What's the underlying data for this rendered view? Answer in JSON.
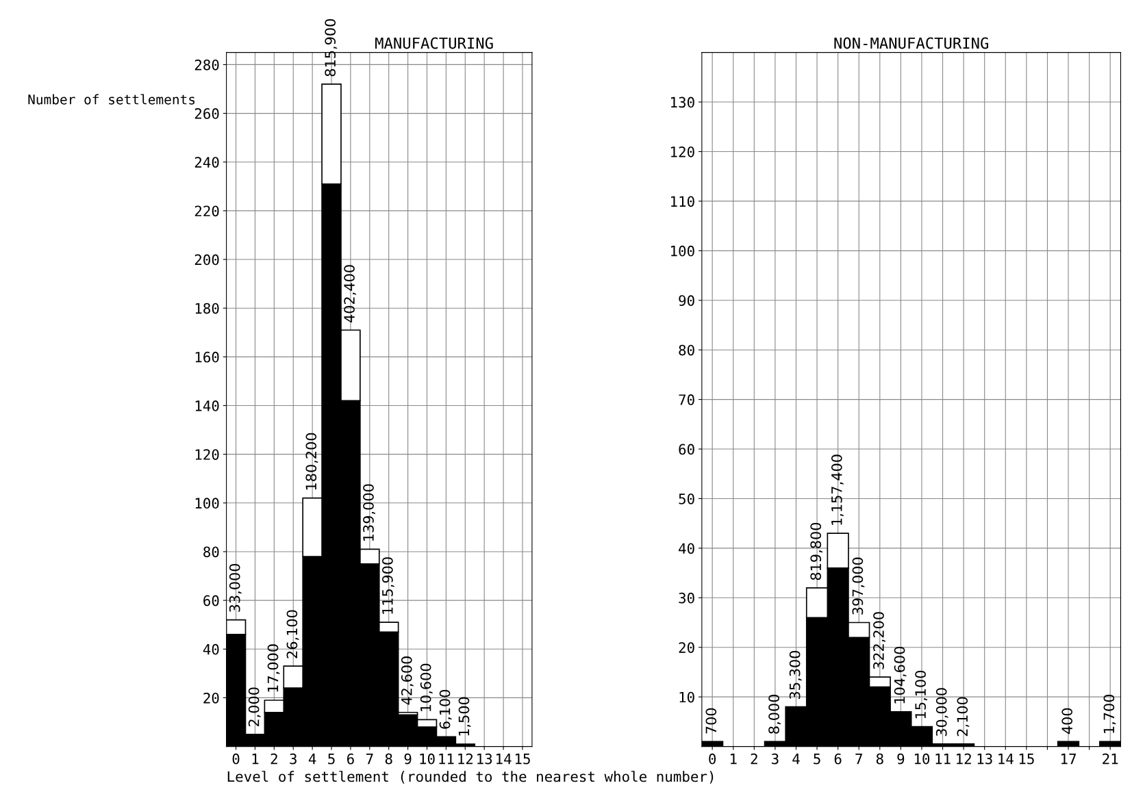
{
  "chart_data": [
    {
      "type": "bar",
      "stacked": true,
      "title": "MANUFACTURING",
      "ylabel": "Number of settlements",
      "xlabel": "Level of settlement (rounded to the nearest whole number)",
      "categories": [
        "0",
        "1",
        "2",
        "3",
        "4",
        "5",
        "6",
        "7",
        "8",
        "9",
        "10",
        "11",
        "12",
        "13",
        "14",
        "15"
      ],
      "series": [
        {
          "color": "#000000",
          "values": [
            46,
            5,
            14,
            24,
            78,
            231,
            142,
            75,
            47,
            13,
            8,
            4,
            1,
            0,
            0,
            0
          ]
        },
        {
          "color": "#ffffff",
          "values": [
            6,
            null,
            5,
            9,
            24,
            41,
            29,
            6,
            4,
            1,
            3,
            null,
            null,
            null,
            null,
            null
          ]
        }
      ],
      "annotations": [
        {
          "text": "33,000",
          "x": "0",
          "y": 52
        },
        {
          "text": "2,000",
          "x": "1",
          "y": 5
        },
        {
          "text": "17,000",
          "x": "2",
          "y": 19
        },
        {
          "text": "26,100",
          "x": "3",
          "y": 33
        },
        {
          "text": "180,200",
          "x": "4",
          "y": 102
        },
        {
          "text": "815,900",
          "x": "5",
          "y": 272
        },
        {
          "text": "402,400",
          "x": "6",
          "y": 171
        },
        {
          "text": "139,000",
          "x": "7",
          "y": 81
        },
        {
          "text": "115,900",
          "x": "8",
          "y": 51
        },
        {
          "text": "42,600",
          "x": "9",
          "y": 14
        },
        {
          "text": "10,600",
          "x": "10",
          "y": 11
        },
        {
          "text": "6,100",
          "x": "11",
          "y": 4
        },
        {
          "text": "1,500",
          "x": "12",
          "y": 1
        }
      ],
      "ylim": [
        0,
        285
      ],
      "yticks": [
        20,
        40,
        60,
        80,
        100,
        120,
        140,
        160,
        180,
        200,
        220,
        240,
        260,
        280
      ],
      "grid": true
    },
    {
      "type": "bar",
      "stacked": true,
      "title": "NON-MANUFACTURING",
      "categories": [
        "0",
        "1",
        "2",
        "3",
        "4",
        "5",
        "6",
        "7",
        "8",
        "9",
        "10",
        "11",
        "12",
        "13",
        "14",
        "15",
        null,
        "17",
        null,
        "21"
      ],
      "series": [
        {
          "color": "#000000",
          "values": [
            1,
            0,
            0,
            1,
            8,
            26,
            36,
            22,
            12,
            7,
            4,
            0.5,
            0.5,
            0,
            0,
            0,
            0,
            1,
            0,
            1
          ]
        },
        {
          "color": "#ffffff",
          "values": [
            null,
            null,
            null,
            null,
            null,
            6,
            7,
            3,
            2,
            null,
            null,
            null,
            null,
            null,
            null,
            null,
            null,
            null,
            null,
            null
          ]
        }
      ],
      "annotations": [
        {
          "text": "700",
          "x": "0",
          "y": 1
        },
        {
          "text": "8,000",
          "x": "3",
          "y": 1
        },
        {
          "text": "35,300",
          "x": "4",
          "y": 8
        },
        {
          "text": "819,800",
          "x": "5",
          "y": 32
        },
        {
          "text": "1,157,400",
          "x": "6",
          "y": 43
        },
        {
          "text": "397,000",
          "x": "7",
          "y": 25
        },
        {
          "text": "322,200",
          "x": "8",
          "y": 14
        },
        {
          "text": "104,600",
          "x": "9",
          "y": 7
        },
        {
          "text": "15,100",
          "x": "10",
          "y": 4
        },
        {
          "text": "30,000",
          "x": "11",
          "y": 0.5
        },
        {
          "text": "2,100",
          "x": "12",
          "y": 0.5
        },
        {
          "text": "400",
          "x": "17",
          "y": 1
        },
        {
          "text": "1,700",
          "x": "21",
          "y": 1
        }
      ],
      "ylim": [
        0,
        140
      ],
      "yticks": [
        10,
        20,
        30,
        40,
        50,
        60,
        70,
        80,
        90,
        100,
        110,
        120,
        130
      ],
      "grid": true
    }
  ]
}
